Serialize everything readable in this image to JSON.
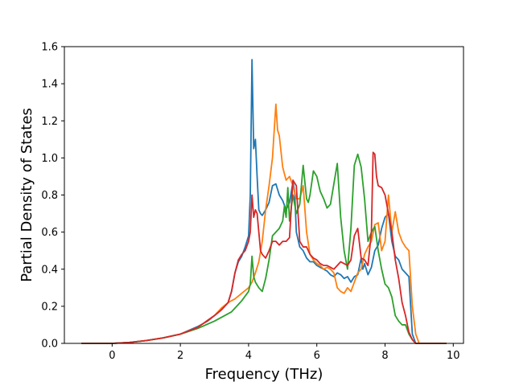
{
  "chart_data": {
    "type": "line",
    "xlabel": "Frequency (THz)",
    "ylabel": "Partial Density of States",
    "xlim": [
      -1.4,
      10.3
    ],
    "ylim": [
      0.0,
      1.6
    ],
    "xticks": [
      0,
      2,
      4,
      6,
      8,
      10
    ],
    "yticks": [
      0.0,
      0.2,
      0.4,
      0.6,
      0.8,
      1.0,
      1.2,
      1.4,
      1.6
    ],
    "xtick_labels": [
      "0",
      "2",
      "4",
      "6",
      "8",
      "10"
    ],
    "ytick_labels": [
      "0.0",
      "0.2",
      "0.4",
      "0.6",
      "0.8",
      "1.0",
      "1.2",
      "1.4",
      "1.6"
    ],
    "grid": false,
    "series": [
      {
        "color": "#1f77b4",
        "x": [
          -0.9,
          0.0,
          0.5,
          1.0,
          1.5,
          2.0,
          2.5,
          2.8,
          3.0,
          3.2,
          3.4,
          3.5,
          3.6,
          3.7,
          3.8,
          3.9,
          4.0,
          4.05,
          4.1,
          4.15,
          4.2,
          4.25,
          4.3,
          4.35,
          4.4,
          4.5,
          4.6,
          4.7,
          4.8,
          4.9,
          5.0,
          5.1,
          5.2,
          5.3,
          5.35,
          5.4,
          5.5,
          5.6,
          5.7,
          5.8,
          5.9,
          6.0,
          6.1,
          6.2,
          6.3,
          6.4,
          6.5,
          6.6,
          6.7,
          6.8,
          6.9,
          7.0,
          7.1,
          7.2,
          7.3,
          7.35,
          7.4,
          7.5,
          7.6,
          7.7,
          7.8,
          7.9,
          8.0,
          8.1,
          8.2,
          8.3,
          8.4,
          8.5,
          8.6,
          8.7,
          8.8,
          8.9,
          9.0,
          9.5,
          9.8
        ],
        "y": [
          0.0,
          0.0,
          0.005,
          0.015,
          0.03,
          0.05,
          0.09,
          0.12,
          0.15,
          0.18,
          0.22,
          0.28,
          0.38,
          0.44,
          0.47,
          0.52,
          0.58,
          0.8,
          1.53,
          1.05,
          1.1,
          0.9,
          0.72,
          0.7,
          0.69,
          0.72,
          0.76,
          0.85,
          0.86,
          0.8,
          0.77,
          0.72,
          0.76,
          0.87,
          0.82,
          0.6,
          0.52,
          0.5,
          0.46,
          0.44,
          0.44,
          0.42,
          0.41,
          0.4,
          0.39,
          0.37,
          0.36,
          0.38,
          0.37,
          0.35,
          0.36,
          0.33,
          0.36,
          0.37,
          0.46,
          0.4,
          0.43,
          0.37,
          0.41,
          0.5,
          0.53,
          0.62,
          0.68,
          0.7,
          0.55,
          0.47,
          0.45,
          0.4,
          0.38,
          0.36,
          0.05,
          0.0,
          0.0,
          0.0,
          0.0
        ]
      },
      {
        "color": "#ff7f0e",
        "x": [
          -0.9,
          0.0,
          0.5,
          1.0,
          1.5,
          2.0,
          2.5,
          3.0,
          3.2,
          3.4,
          3.5,
          3.6,
          3.8,
          4.0,
          4.1,
          4.2,
          4.3,
          4.4,
          4.5,
          4.6,
          4.7,
          4.8,
          4.85,
          4.9,
          5.0,
          5.1,
          5.2,
          5.3,
          5.4,
          5.5,
          5.6,
          5.7,
          5.8,
          5.9,
          6.0,
          6.1,
          6.2,
          6.3,
          6.4,
          6.5,
          6.6,
          6.7,
          6.8,
          6.9,
          7.0,
          7.1,
          7.2,
          7.3,
          7.4,
          7.5,
          7.6,
          7.7,
          7.8,
          7.9,
          8.0,
          8.1,
          8.15,
          8.2,
          8.3,
          8.4,
          8.5,
          8.6,
          8.7,
          8.8,
          8.9,
          9.0,
          9.5,
          9.8
        ],
        "y": [
          0.0,
          0.0,
          0.005,
          0.015,
          0.03,
          0.05,
          0.085,
          0.15,
          0.19,
          0.22,
          0.23,
          0.24,
          0.27,
          0.3,
          0.33,
          0.38,
          0.44,
          0.55,
          0.72,
          0.85,
          1.0,
          1.29,
          1.15,
          1.12,
          0.95,
          0.88,
          0.9,
          0.85,
          0.78,
          0.78,
          0.85,
          0.6,
          0.48,
          0.45,
          0.43,
          0.42,
          0.4,
          0.41,
          0.4,
          0.38,
          0.3,
          0.28,
          0.27,
          0.3,
          0.28,
          0.33,
          0.38,
          0.4,
          0.48,
          0.52,
          0.55,
          0.64,
          0.65,
          0.5,
          0.55,
          0.8,
          0.7,
          0.6,
          0.71,
          0.6,
          0.55,
          0.52,
          0.5,
          0.2,
          0.05,
          0.0,
          0.0,
          0.0
        ]
      },
      {
        "color": "#2ca02c",
        "x": [
          -0.9,
          0.0,
          0.5,
          1.0,
          1.5,
          2.0,
          2.5,
          3.0,
          3.5,
          3.8,
          4.0,
          4.05,
          4.1,
          4.15,
          4.2,
          4.3,
          4.4,
          4.5,
          4.6,
          4.7,
          4.8,
          4.9,
          5.0,
          5.05,
          5.1,
          5.15,
          5.2,
          5.3,
          5.4,
          5.5,
          5.6,
          5.7,
          5.75,
          5.8,
          5.9,
          6.0,
          6.1,
          6.2,
          6.3,
          6.4,
          6.5,
          6.6,
          6.7,
          6.8,
          6.9,
          7.0,
          7.1,
          7.2,
          7.3,
          7.4,
          7.5,
          7.6,
          7.7,
          7.8,
          7.9,
          8.0,
          8.1,
          8.2,
          8.3,
          8.4,
          8.5,
          8.6,
          8.7,
          8.8,
          8.9,
          9.0,
          9.5,
          9.8
        ],
        "y": [
          0.0,
          0.0,
          0.005,
          0.015,
          0.03,
          0.05,
          0.08,
          0.12,
          0.17,
          0.23,
          0.28,
          0.32,
          0.47,
          0.36,
          0.33,
          0.3,
          0.28,
          0.35,
          0.45,
          0.58,
          0.6,
          0.62,
          0.66,
          0.74,
          0.68,
          0.84,
          0.66,
          0.8,
          0.7,
          0.75,
          0.96,
          0.78,
          0.76,
          0.8,
          0.93,
          0.9,
          0.82,
          0.78,
          0.73,
          0.75,
          0.86,
          0.97,
          0.68,
          0.5,
          0.4,
          0.62,
          0.96,
          1.02,
          0.95,
          0.78,
          0.55,
          0.6,
          0.63,
          0.5,
          0.4,
          0.32,
          0.3,
          0.25,
          0.15,
          0.12,
          0.1,
          0.1,
          0.05,
          0.02,
          0.0,
          0.0,
          0.0,
          0.0
        ]
      },
      {
        "color": "#d62728",
        "x": [
          -0.9,
          0.0,
          0.5,
          1.0,
          1.5,
          2.0,
          2.5,
          3.0,
          3.2,
          3.4,
          3.5,
          3.6,
          3.7,
          3.8,
          3.9,
          4.0,
          4.05,
          4.1,
          4.15,
          4.2,
          4.25,
          4.3,
          4.35,
          4.4,
          4.5,
          4.6,
          4.7,
          4.8,
          4.9,
          5.0,
          5.1,
          5.2,
          5.3,
          5.4,
          5.5,
          5.6,
          5.7,
          5.8,
          5.9,
          6.0,
          6.1,
          6.2,
          6.3,
          6.4,
          6.5,
          6.6,
          6.7,
          6.8,
          6.9,
          7.0,
          7.1,
          7.2,
          7.3,
          7.4,
          7.5,
          7.6,
          7.65,
          7.7,
          7.75,
          7.8,
          7.9,
          8.0,
          8.1,
          8.2,
          8.3,
          8.4,
          8.5,
          8.6,
          8.7,
          8.8,
          8.9,
          9.0,
          9.5,
          9.8
        ],
        "y": [
          0.0,
          0.0,
          0.005,
          0.015,
          0.03,
          0.05,
          0.085,
          0.15,
          0.18,
          0.22,
          0.28,
          0.38,
          0.45,
          0.48,
          0.5,
          0.55,
          0.6,
          0.8,
          0.68,
          0.72,
          0.7,
          0.6,
          0.5,
          0.48,
          0.46,
          0.5,
          0.55,
          0.55,
          0.53,
          0.55,
          0.55,
          0.57,
          0.88,
          0.85,
          0.55,
          0.52,
          0.52,
          0.48,
          0.46,
          0.45,
          0.43,
          0.42,
          0.42,
          0.41,
          0.4,
          0.42,
          0.44,
          0.43,
          0.42,
          0.45,
          0.58,
          0.62,
          0.46,
          0.45,
          0.42,
          0.6,
          1.03,
          1.02,
          0.9,
          0.85,
          0.84,
          0.8,
          0.7,
          0.6,
          0.45,
          0.35,
          0.22,
          0.15,
          0.06,
          0.02,
          0.0,
          0.0,
          0.0,
          0.0
        ]
      }
    ]
  }
}
